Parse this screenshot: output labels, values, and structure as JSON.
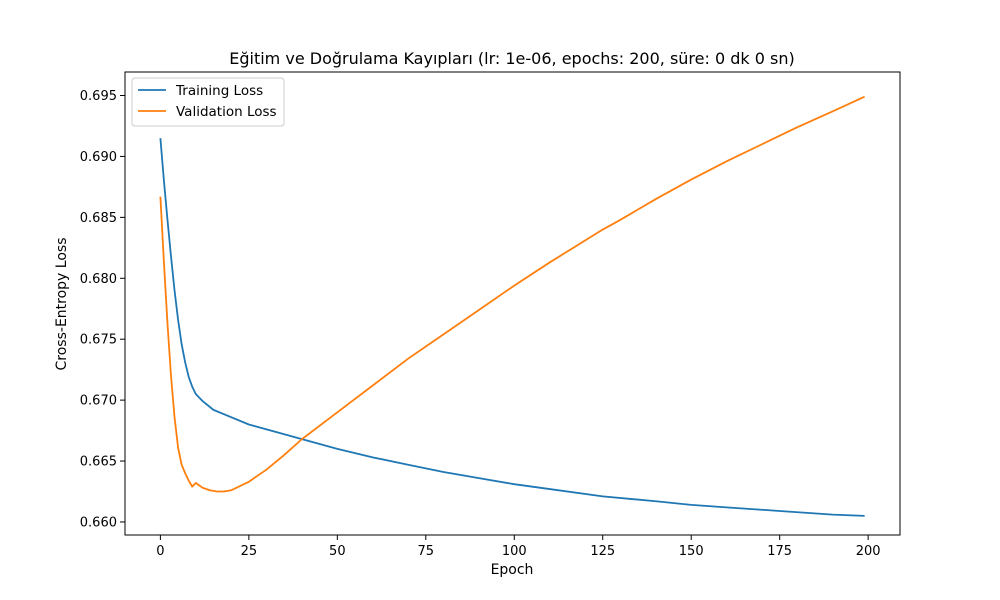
{
  "chart_data": {
    "type": "line",
    "title": "Eğitim ve Doğrulama Kayıpları (lr: 1e-06, epochs: 200, süre: 0 dk 0 sn)",
    "xlabel": "Epoch",
    "ylabel": "Cross-Entropy Loss",
    "xlim": [
      -10,
      209
    ],
    "ylim": [
      0.65893,
      0.69693
    ],
    "xticks": [
      0,
      25,
      50,
      75,
      100,
      125,
      150,
      175,
      200
    ],
    "yticks": [
      0.66,
      0.665,
      0.67,
      0.675,
      0.68,
      0.685,
      0.69,
      0.695
    ],
    "ytick_labels": [
      "0.660",
      "0.665",
      "0.670",
      "0.675",
      "0.680",
      "0.685",
      "0.690",
      "0.695"
    ],
    "grid": false,
    "legend": "top-left",
    "series": [
      {
        "name": "Training Loss",
        "color": "#1f77b4",
        "points": [
          [
            0,
            0.6915
          ],
          [
            1,
            0.688
          ],
          [
            2,
            0.6848
          ],
          [
            3,
            0.6818
          ],
          [
            4,
            0.679
          ],
          [
            5,
            0.6766
          ],
          [
            6,
            0.6746
          ],
          [
            7,
            0.6731
          ],
          [
            8,
            0.6719
          ],
          [
            9,
            0.6711
          ],
          [
            10,
            0.6705
          ],
          [
            12,
            0.6699
          ],
          [
            15,
            0.6692
          ],
          [
            20,
            0.6686
          ],
          [
            25,
            0.668
          ],
          [
            30,
            0.6676
          ],
          [
            40,
            0.6668
          ],
          [
            50,
            0.666
          ],
          [
            60,
            0.6653
          ],
          [
            70,
            0.6647
          ],
          [
            75,
            0.6644
          ],
          [
            80,
            0.6641
          ],
          [
            90,
            0.6636
          ],
          [
            100,
            0.6631
          ],
          [
            110,
            0.6627
          ],
          [
            125,
            0.6621
          ],
          [
            140,
            0.6617
          ],
          [
            150,
            0.6614
          ],
          [
            160,
            0.6612
          ],
          [
            175,
            0.6609
          ],
          [
            190,
            0.6606
          ],
          [
            199,
            0.6605
          ]
        ]
      },
      {
        "name": "Validation Loss",
        "color": "#ff7f0e",
        "points": [
          [
            0,
            0.6867
          ],
          [
            1,
            0.6813
          ],
          [
            2,
            0.6763
          ],
          [
            3,
            0.672
          ],
          [
            4,
            0.6686
          ],
          [
            5,
            0.6661
          ],
          [
            6,
            0.6647
          ],
          [
            7,
            0.664
          ],
          [
            8,
            0.6634
          ],
          [
            9,
            0.6629
          ],
          [
            10,
            0.6632
          ],
          [
            12,
            0.6628
          ],
          [
            14,
            0.6626
          ],
          [
            16,
            0.6625
          ],
          [
            18,
            0.6625
          ],
          [
            20,
            0.6626
          ],
          [
            25,
            0.6633
          ],
          [
            30,
            0.6643
          ],
          [
            35,
            0.6655
          ],
          [
            40,
            0.6668
          ],
          [
            50,
            0.669
          ],
          [
            60,
            0.6712
          ],
          [
            70,
            0.6734
          ],
          [
            75,
            0.6744
          ],
          [
            80,
            0.6754
          ],
          [
            90,
            0.6774
          ],
          [
            100,
            0.6794
          ],
          [
            110,
            0.6813
          ],
          [
            120,
            0.6831
          ],
          [
            125,
            0.684
          ],
          [
            130,
            0.6848
          ],
          [
            140,
            0.6865
          ],
          [
            150,
            0.6881
          ],
          [
            160,
            0.6896
          ],
          [
            170,
            0.691
          ],
          [
            175,
            0.6917
          ],
          [
            180,
            0.6924
          ],
          [
            190,
            0.6937
          ],
          [
            199,
            0.6949
          ]
        ]
      }
    ]
  }
}
